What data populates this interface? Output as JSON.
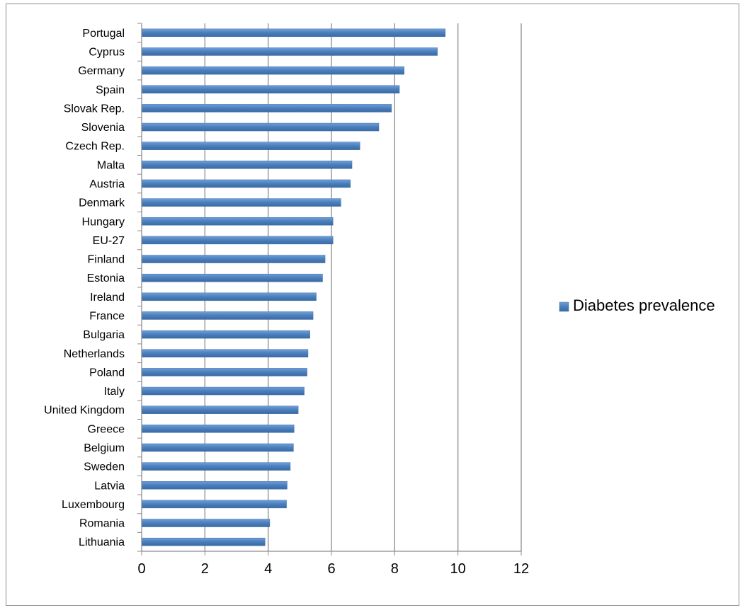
{
  "chart_data": {
    "type": "bar",
    "orientation": "horizontal",
    "categories": [
      "Portugal",
      "Cyprus",
      "Germany",
      "Spain",
      "Slovak Rep.",
      "Slovenia",
      "Czech Rep.",
      "Malta",
      "Austria",
      "Denmark",
      "Hungary",
      "EU-27",
      "Finland",
      "Estonia",
      "Ireland",
      "France",
      "Bulgaria",
      "Netherlands",
      "Poland",
      "Italy",
      "United Kingdom",
      "Greece",
      "Belgium",
      "Sweden",
      "Latvia",
      "Luxembourg",
      "Romania",
      "Lithuania"
    ],
    "series": [
      {
        "name": "Diabetes prevalence",
        "color": "#4a7ebb",
        "values": [
          9.6,
          9.35,
          8.3,
          8.15,
          7.9,
          7.5,
          6.9,
          6.65,
          6.6,
          6.3,
          6.05,
          6.05,
          5.8,
          5.72,
          5.52,
          5.42,
          5.32,
          5.26,
          5.23,
          5.14,
          4.95,
          4.82,
          4.8,
          4.7,
          4.6,
          4.58,
          4.05,
          3.9
        ]
      }
    ],
    "xlim": [
      0,
      12
    ],
    "xticks": [
      0,
      2,
      4,
      6,
      8,
      10,
      12
    ],
    "grid": true,
    "legend_position": "right"
  }
}
